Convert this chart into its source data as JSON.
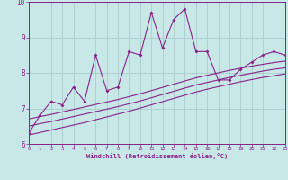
{
  "xlabel": "Windchill (Refroidissement éolien,°C)",
  "bg_color": "#c8e8e8",
  "line_color": "#882288",
  "grid_color": "#aacccc",
  "x_main": [
    0,
    1,
    2,
    3,
    4,
    5,
    6,
    7,
    8,
    9,
    10,
    11,
    12,
    13,
    14,
    15,
    16,
    17,
    18,
    19,
    20,
    21,
    22,
    23
  ],
  "y_main": [
    6.3,
    6.8,
    7.2,
    7.1,
    7.6,
    7.2,
    8.5,
    7.5,
    7.6,
    8.6,
    8.5,
    9.7,
    8.7,
    9.5,
    9.8,
    8.6,
    8.6,
    7.8,
    7.8,
    8.1,
    8.3,
    8.5,
    8.6,
    8.5
  ],
  "y_line1": [
    6.25,
    6.32,
    6.39,
    6.46,
    6.53,
    6.6,
    6.68,
    6.76,
    6.84,
    6.92,
    7.01,
    7.1,
    7.19,
    7.28,
    7.37,
    7.46,
    7.54,
    7.61,
    7.68,
    7.75,
    7.81,
    7.87,
    7.92,
    7.97
  ],
  "y_line2": [
    6.5,
    6.57,
    6.63,
    6.7,
    6.77,
    6.84,
    6.91,
    6.98,
    7.05,
    7.13,
    7.21,
    7.3,
    7.39,
    7.48,
    7.57,
    7.66,
    7.73,
    7.8,
    7.87,
    7.93,
    7.99,
    8.05,
    8.1,
    8.14
  ],
  "y_line3": [
    6.7,
    6.77,
    6.83,
    6.9,
    6.97,
    7.04,
    7.11,
    7.18,
    7.25,
    7.33,
    7.41,
    7.5,
    7.59,
    7.68,
    7.77,
    7.86,
    7.93,
    8.0,
    8.07,
    8.13,
    8.19,
    8.24,
    8.29,
    8.33
  ],
  "xlim": [
    0,
    23
  ],
  "ylim": [
    6.0,
    10.0
  ],
  "yticks": [
    6,
    7,
    8,
    9,
    10
  ],
  "xticks": [
    0,
    1,
    2,
    3,
    4,
    5,
    6,
    7,
    8,
    9,
    10,
    11,
    12,
    13,
    14,
    15,
    16,
    17,
    18,
    19,
    20,
    21,
    22,
    23
  ]
}
